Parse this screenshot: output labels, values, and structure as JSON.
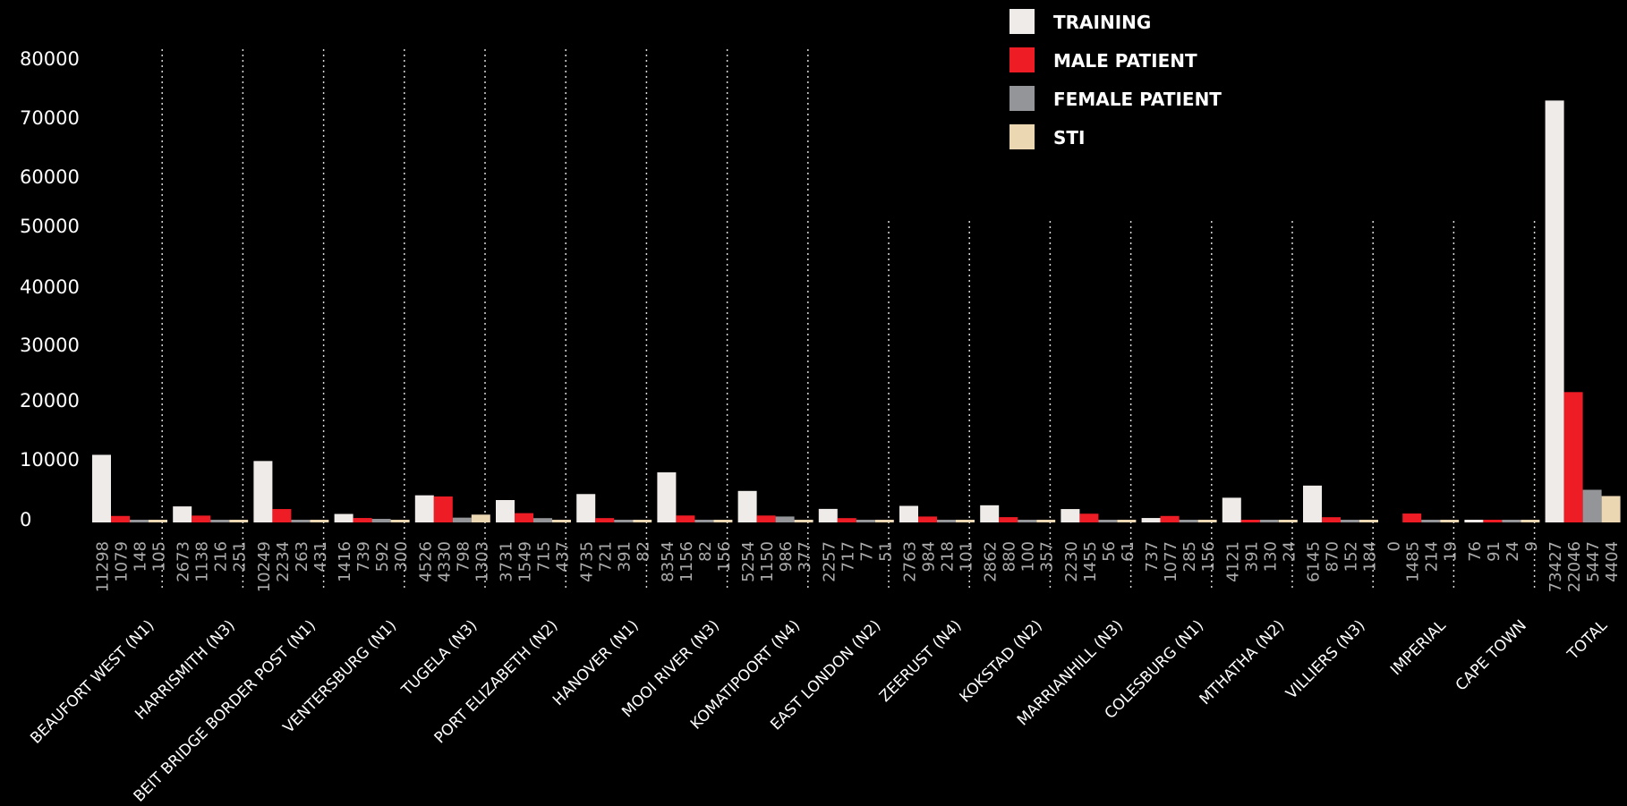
{
  "chart_data": {
    "type": "bar",
    "title": "",
    "xlabel": "",
    "ylabel": "",
    "yticks": [
      "80000",
      "70000",
      "60000",
      "50000",
      "40000",
      "30000",
      "20000",
      "10000",
      "0"
    ],
    "ylim": [
      0,
      80000
    ],
    "legend_position": "top-right",
    "categories": [
      "BEAUFORT WEST (N1)",
      "HARRISMITH (N3)",
      "BEIT BRIDGE BORDER POST (N1)",
      "VENTERSBURG (N1)",
      "TUGELA (N3)",
      "PORT ELIZABETH (N2)",
      "HANOVER (N1)",
      "MOOI RIVER (N3)",
      "KOMATIPOORT (N4)",
      "EAST LONDON (N2)",
      "ZEERUST (N4)",
      "KOKSTAD (N2)",
      "MARRIANHILL (N3)",
      "COLESBURG (N1)",
      "MTHATHA (N2)",
      "VILLIERS (N3)",
      "IMPERIAL",
      "CAPE TOWN",
      "TOTAL"
    ],
    "series": [
      {
        "name": "TRAINING",
        "color": "#efebe8",
        "values": [
          11298,
          2673,
          10249,
          1416,
          4526,
          3731,
          4735,
          8354,
          5254,
          2257,
          2763,
          2862,
          2230,
          737,
          4121,
          6145,
          0,
          76,
          73427
        ]
      },
      {
        "name": "MALE PATIENT",
        "color": "#ee1c25",
        "values": [
          1079,
          1138,
          2234,
          739,
          4330,
          1549,
          721,
          1156,
          1150,
          717,
          984,
          880,
          1455,
          1077,
          391,
          870,
          1485,
          91,
          22046
        ]
      },
      {
        "name": "FEMALE PATIENT",
        "color": "#939598",
        "values": [
          148,
          216,
          263,
          592,
          798,
          715,
          391,
          82,
          986,
          77,
          218,
          100,
          56,
          285,
          130,
          152,
          214,
          24,
          5447
        ]
      },
      {
        "name": "STI",
        "color": "#ecd7b3",
        "values": [
          105,
          251,
          431,
          300,
          1303,
          437,
          82,
          156,
          377,
          51,
          101,
          357,
          61,
          156,
          24,
          184,
          19,
          9,
          4404
        ]
      }
    ]
  }
}
